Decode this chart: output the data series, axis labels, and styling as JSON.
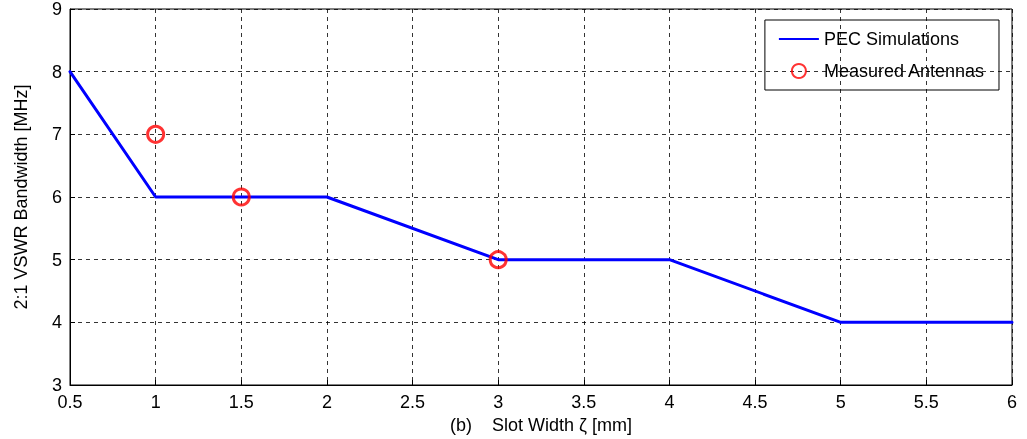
{
  "chart_data": {
    "type": "line",
    "xlabel": "(b)    Slot Width ζ [mm]",
    "ylabel": "2:1 VSWR Bandwidth [MHz]",
    "xlim": [
      0.5,
      6
    ],
    "xticks": [
      0.5,
      1,
      1.5,
      2,
      2.5,
      3,
      3.5,
      4,
      4.5,
      5,
      5.5,
      6
    ],
    "ylim": [
      3,
      9
    ],
    "yticks": [
      3,
      4,
      5,
      6,
      7,
      8,
      9
    ],
    "grid": true,
    "legend": "top right",
    "series": [
      {
        "name": "PEC Simulations",
        "color": "#0000ff",
        "marker": "none",
        "line_style": "solid",
        "x": [
          0.5,
          1,
          1.5,
          2,
          3,
          4,
          5,
          6
        ],
        "values": [
          8,
          6,
          6,
          6,
          5,
          5,
          4,
          4
        ]
      },
      {
        "name": "Measured Antennas",
        "type": "scatter",
        "color": "#ff0000",
        "marker": "circle",
        "x": [
          1,
          1.5,
          3
        ],
        "values": [
          7,
          6,
          5
        ]
      }
    ]
  }
}
